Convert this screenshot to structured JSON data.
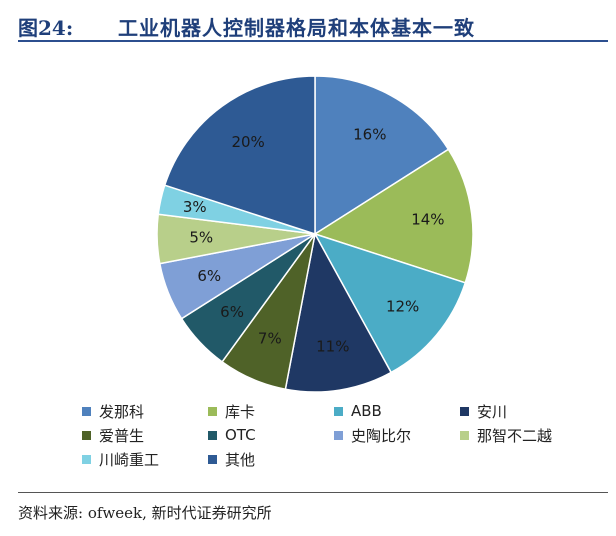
{
  "header": {
    "figure_label": "图24:",
    "title": "工业机器人控制器格局和本体基本一致"
  },
  "chart_data": {
    "type": "pie",
    "title": "工业机器人控制器格局和本体基本一致",
    "categories": [
      "发那科",
      "库卡",
      "ABB",
      "安川",
      "爱普生",
      "OTC",
      "史陶比尔",
      "那智不二越",
      "川崎重工",
      "其他"
    ],
    "values": [
      16,
      14,
      12,
      11,
      7,
      6,
      6,
      5,
      3,
      20
    ],
    "value_labels": [
      "16%",
      "14%",
      "12%",
      "11%",
      "7%",
      "6%",
      "6%",
      "5%",
      "3%",
      "20%"
    ],
    "colors": [
      "#4f81bd",
      "#9bbb59",
      "#4bacc6",
      "#1f3864",
      "#4f6228",
      "#215968",
      "#7f9fd6",
      "#b8cf8a",
      "#7fd1e3",
      "#2e5a94"
    ],
    "legend_position": "bottom"
  },
  "footer": {
    "source": "资料来源: ofweek, 新时代证券研究所"
  }
}
